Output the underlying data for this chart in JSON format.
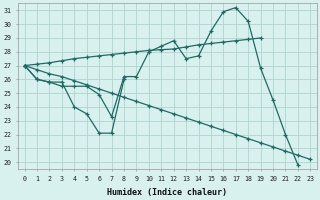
{
  "xlabel": "Humidex (Indice chaleur)",
  "bg_color": "#d8f0ee",
  "grid_color": "#b0d4d0",
  "line_color": "#1e6b65",
  "xlim": [
    -0.5,
    23.5
  ],
  "ylim": [
    19.5,
    31.5
  ],
  "yticks": [
    20,
    21,
    22,
    23,
    24,
    25,
    26,
    27,
    28,
    29,
    30,
    31
  ],
  "xticks": [
    0,
    1,
    2,
    3,
    4,
    5,
    6,
    7,
    8,
    9,
    10,
    11,
    12,
    13,
    14,
    15,
    16,
    17,
    18,
    19,
    20,
    21,
    22,
    23
  ],
  "series": [
    {
      "x": [
        0,
        1,
        2,
        3,
        4,
        5,
        6,
        7,
        8
      ],
      "y": [
        27.0,
        26.0,
        25.8,
        25.8,
        24.0,
        23.5,
        22.1,
        22.1,
        26.0
      ]
    },
    {
      "x": [
        0,
        1,
        2,
        3,
        4,
        5,
        6,
        7,
        8,
        9,
        10,
        11,
        12,
        13,
        14,
        15,
        16,
        17,
        18,
        19,
        20,
        21,
        22,
        23
      ],
      "y": [
        27.0,
        26.0,
        25.8,
        25.5,
        25.5,
        25.5,
        24.9,
        23.3,
        26.2,
        26.2,
        28.0,
        28.4,
        28.8,
        27.5,
        27.7,
        29.5,
        30.9,
        31.2,
        30.2,
        26.8,
        24.5,
        22.0,
        19.8,
        null
      ]
    },
    {
      "x": [
        0,
        1,
        2,
        3,
        4,
        5,
        6,
        7,
        8,
        9,
        10,
        11,
        12,
        13,
        14,
        15,
        16,
        17,
        18,
        19
      ],
      "y": [
        27.0,
        27.1,
        27.2,
        27.35,
        27.5,
        27.6,
        27.7,
        27.8,
        27.9,
        28.0,
        28.1,
        28.15,
        28.2,
        28.35,
        28.5,
        28.6,
        28.7,
        28.8,
        28.9,
        29.0
      ]
    },
    {
      "x": [
        0,
        1,
        2,
        3,
        4,
        5,
        6,
        7,
        8,
        9,
        10,
        11,
        12,
        13,
        14,
        15,
        16,
        17,
        18,
        19,
        20,
        21,
        22,
        23
      ],
      "y": [
        27.0,
        26.7,
        26.4,
        26.2,
        25.9,
        25.6,
        25.3,
        25.0,
        24.7,
        24.4,
        24.1,
        23.8,
        23.5,
        23.2,
        22.9,
        22.6,
        22.3,
        22.0,
        21.7,
        21.4,
        21.1,
        20.8,
        20.5,
        20.2
      ]
    }
  ]
}
